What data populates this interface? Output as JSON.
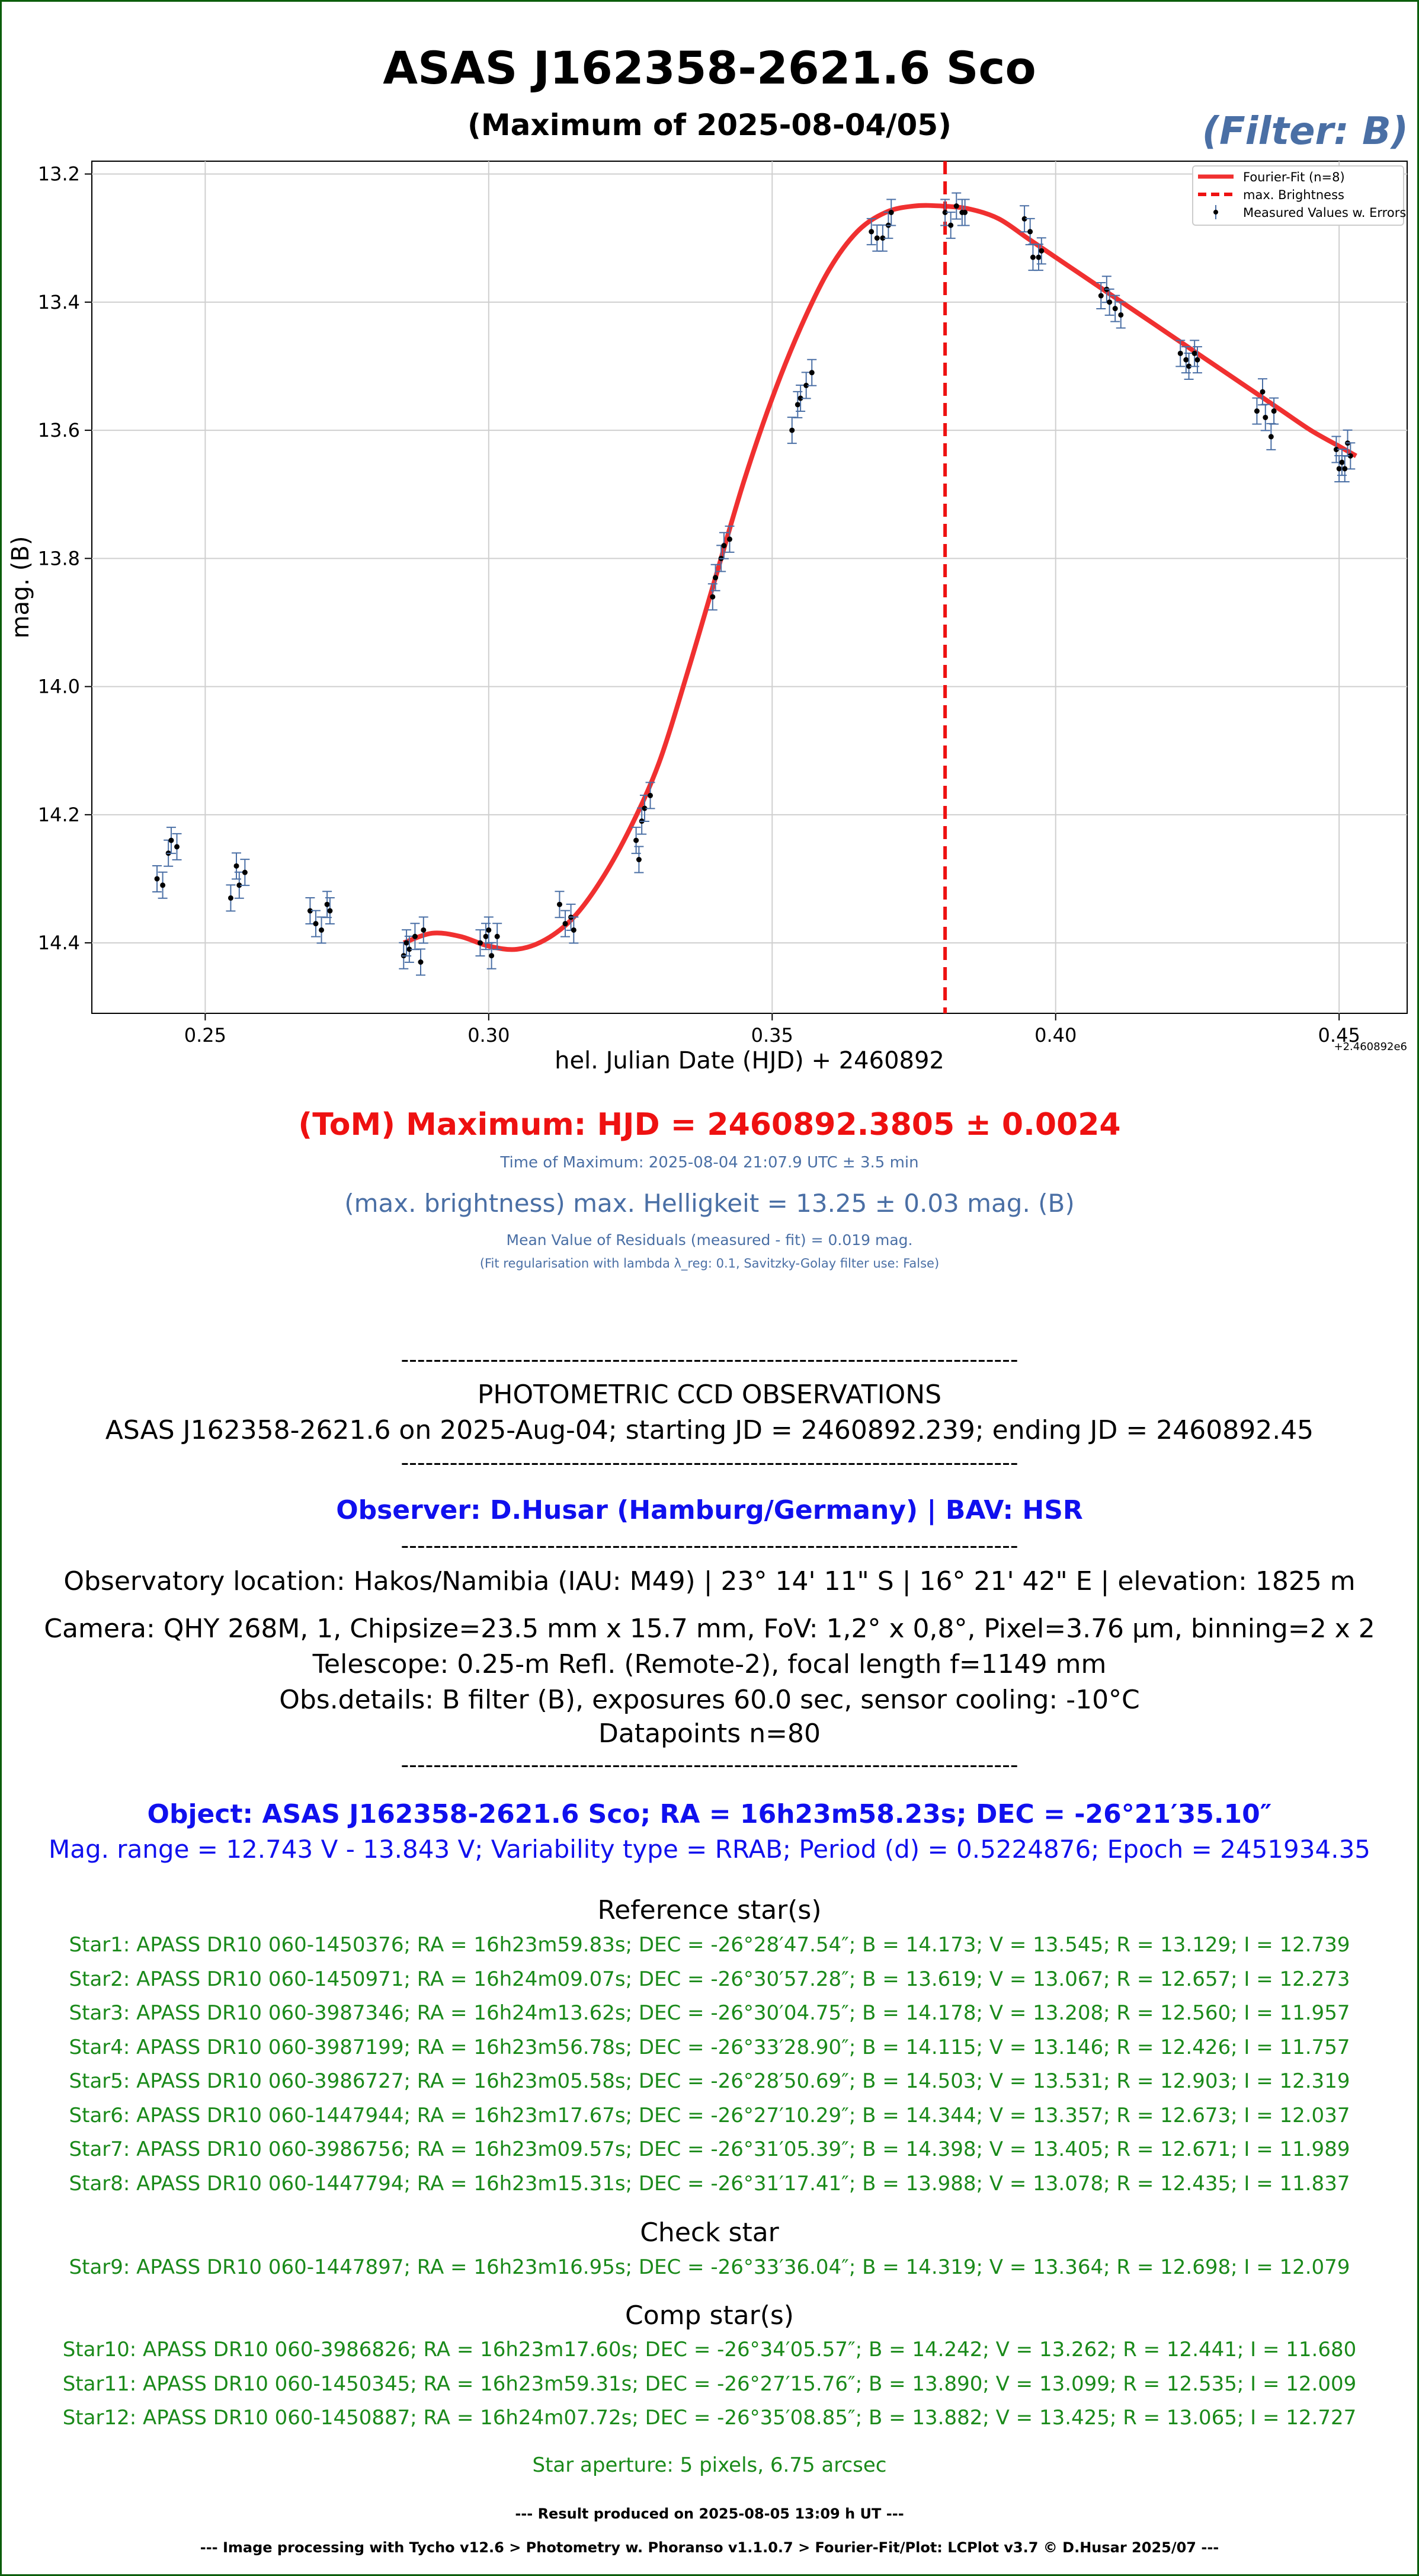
{
  "header": {
    "title": "ASAS J162358-2621.6 Sco",
    "subtitle": "(Maximum of 2025-08-04/05)",
    "filter": "(Filter: B)"
  },
  "chart_data": {
    "type": "scatter",
    "ylabel": "mag. (B)",
    "xlabel": "hel. Julian Date (HJD) + 2460892",
    "x_offset_label": "+2.460892e6",
    "xlim": [
      0.23,
      0.462
    ],
    "ylim": [
      14.51,
      13.18
    ],
    "y_inverted": true,
    "grid": true,
    "legend_position": "top-right",
    "x_ticks": [
      0.25,
      0.3,
      0.35,
      0.4,
      0.45
    ],
    "x_tick_labels": [
      "0.25",
      "0.30",
      "0.35",
      "0.40",
      "0.45"
    ],
    "y_ticks": [
      13.2,
      13.4,
      13.6,
      13.8,
      14.0,
      14.2,
      14.4
    ],
    "y_tick_labels": [
      "13.2",
      "13.4",
      "13.6",
      "13.8",
      "14.0",
      "14.2",
      "14.4"
    ],
    "legend": [
      "Fourier-Fit (n=8)",
      "max. Brightness",
      "Measured Values w. Errors"
    ],
    "colors": {
      "fit": "#f03030",
      "max_line": "#ee1111",
      "points": "#000000",
      "errorbars": "#4a6fa5"
    },
    "max_brightness_x": 0.3805,
    "fit_curve": {
      "name": "Fourier-Fit (n=8)",
      "x": [
        0.285,
        0.29,
        0.295,
        0.3,
        0.305,
        0.31,
        0.315,
        0.32,
        0.325,
        0.33,
        0.335,
        0.34,
        0.345,
        0.35,
        0.355,
        0.36,
        0.365,
        0.37,
        0.375,
        0.38,
        0.385,
        0.39,
        0.395,
        0.4,
        0.405,
        0.41,
        0.415,
        0.42,
        0.425,
        0.43,
        0.435,
        0.44,
        0.445,
        0.45,
        0.453
      ],
      "y": [
        14.4,
        14.385,
        14.39,
        14.405,
        14.41,
        14.395,
        14.36,
        14.3,
        14.22,
        14.12,
        13.98,
        13.83,
        13.68,
        13.55,
        13.44,
        13.35,
        13.29,
        13.26,
        13.25,
        13.25,
        13.255,
        13.27,
        13.3,
        13.33,
        13.36,
        13.39,
        13.42,
        13.45,
        13.48,
        13.51,
        13.54,
        13.57,
        13.6,
        13.625,
        13.64
      ]
    },
    "series": [
      {
        "name": "Measured Values w. Errors",
        "x": [
          0.2415,
          0.2425,
          0.2435,
          0.244,
          0.245,
          0.2545,
          0.2555,
          0.256,
          0.257,
          0.2685,
          0.2695,
          0.2705,
          0.2715,
          0.272,
          0.285,
          0.2855,
          0.286,
          0.287,
          0.288,
          0.2885,
          0.2985,
          0.2995,
          0.3,
          0.3005,
          0.3015,
          0.3125,
          0.3135,
          0.3145,
          0.315,
          0.326,
          0.3265,
          0.327,
          0.3275,
          0.3285,
          0.3395,
          0.34,
          0.341,
          0.3415,
          0.3425,
          0.3535,
          0.3545,
          0.355,
          0.356,
          0.357,
          0.3675,
          0.3685,
          0.3695,
          0.3705,
          0.371,
          0.3805,
          0.3815,
          0.3825,
          0.3835,
          0.384,
          0.3945,
          0.3955,
          0.396,
          0.397,
          0.3975,
          0.408,
          0.409,
          0.4095,
          0.4105,
          0.4115,
          0.422,
          0.423,
          0.4235,
          0.4245,
          0.425,
          0.4355,
          0.4365,
          0.437,
          0.438,
          0.4385,
          0.4495,
          0.45,
          0.4505,
          0.4515,
          0.452,
          0.451
        ],
        "y": [
          14.3,
          14.31,
          14.26,
          14.24,
          14.25,
          14.33,
          14.28,
          14.31,
          14.29,
          14.35,
          14.37,
          14.38,
          14.34,
          14.35,
          14.42,
          14.4,
          14.41,
          14.39,
          14.43,
          14.38,
          14.4,
          14.39,
          14.38,
          14.42,
          14.39,
          14.34,
          14.37,
          14.36,
          14.38,
          14.24,
          14.27,
          14.21,
          14.19,
          14.17,
          13.86,
          13.83,
          13.8,
          13.78,
          13.77,
          13.6,
          13.56,
          13.55,
          13.53,
          13.51,
          13.29,
          13.3,
          13.3,
          13.28,
          13.26,
          13.26,
          13.28,
          13.25,
          13.26,
          13.26,
          13.27,
          13.29,
          13.33,
          13.33,
          13.32,
          13.39,
          13.38,
          13.4,
          13.41,
          13.42,
          13.48,
          13.49,
          13.5,
          13.48,
          13.49,
          13.57,
          13.54,
          13.58,
          13.61,
          13.57,
          13.63,
          13.66,
          13.65,
          13.62,
          13.64,
          13.66
        ]
      }
    ]
  },
  "results": {
    "tom": "(ToM) Maximum: HJD = 2460892.3805 ± 0.0024",
    "tom_time": "Time of Maximum:   2025-08-04   21:07.9 UTC ± 3.5 min",
    "max_brightness": "(max. brightness) max. Helligkeit = 13.25 ± 0.03 mag. (B)",
    "residuals": "Mean Value of Residuals (measured - fit) = 0.019 mag.",
    "fit_note": "(Fit regularisation with lambda λ_reg: 0.1, Savitzky-Golay filter use: False)"
  },
  "observations": {
    "separator": "----------------------------------------------------------------------------",
    "heading": "PHOTOMETRIC CCD OBSERVATIONS",
    "run": "ASAS J162358-2621.6 on 2025-Aug-04; starting JD = 2460892.239; ending JD = 2460892.45",
    "observer": "Observer: D.Husar (Hamburg/Germany) | BAV: HSR",
    "location": "Observatory location: Hakos/Namibia (IAU: M49) | 23° 14' 11\" S | 16° 21' 42\" E | elevation: 1825 m",
    "camera": "Camera: QHY 268M, 1, Chipsize=23.5 mm x 15.7 mm, FoV: 1,2° x 0,8°, Pixel=3.76 µm, binning=2 x 2",
    "telescope": "Telescope: 0.25-m Refl. (Remote-2), focal length f=1149 mm",
    "details": "Obs.details: B filter (B), exposures 60.0 sec, sensor cooling: -10°C",
    "datapoints": "Datapoints n=80"
  },
  "object": {
    "line1": "Object: ASAS J162358-2621.6 Sco; RA = 16h23m58.23s; DEC = -26°21′35.10″",
    "line2": "Mag. range = 12.743 V - 13.843 V; Variability type = RRAB; Period (d) = 0.5224876; Epoch = 2451934.35"
  },
  "reference": {
    "heading": "Reference star(s)",
    "stars": [
      "Star1: APASS DR10 060-1450376; RA = 16h23m59.83s; DEC = -26°28′47.54″; B = 14.173; V = 13.545; R = 13.129; I = 12.739",
      "Star2: APASS DR10 060-1450971; RA = 16h24m09.07s; DEC = -26°30′57.28″; B = 13.619; V = 13.067; R = 12.657; I = 12.273",
      "Star3: APASS DR10 060-3987346; RA = 16h24m13.62s; DEC = -26°30′04.75″; B = 14.178; V = 13.208; R = 12.560; I = 11.957",
      "Star4: APASS DR10 060-3987199; RA = 16h23m56.78s; DEC = -26°33′28.90″; B = 14.115; V = 13.146; R = 12.426; I = 11.757",
      "Star5: APASS DR10 060-3986727; RA = 16h23m05.58s; DEC = -26°28′50.69″; B = 14.503; V = 13.531; R = 12.903; I = 12.319",
      "Star6: APASS DR10 060-1447944; RA = 16h23m17.67s; DEC = -26°27′10.29″; B = 14.344; V = 13.357; R = 12.673; I = 12.037",
      "Star7: APASS DR10 060-3986756; RA = 16h23m09.57s; DEC = -26°31′05.39″; B = 14.398; V = 13.405; R = 12.671; I = 11.989",
      "Star8: APASS DR10 060-1447794; RA = 16h23m15.31s; DEC = -26°31′17.41″; B = 13.988; V = 13.078; R = 12.435; I = 11.837"
    ]
  },
  "check": {
    "heading": "Check star",
    "stars": [
      "Star9: APASS DR10 060-1447897; RA = 16h23m16.95s; DEC = -26°33′36.04″; B = 14.319; V = 13.364; R = 12.698; I = 12.079"
    ]
  },
  "comp": {
    "heading": "Comp star(s)",
    "stars": [
      "Star10: APASS DR10 060-3986826; RA = 16h23m17.60s; DEC = -26°34′05.57″; B = 14.242; V = 13.262; R = 12.441; I = 11.680",
      "Star11: APASS DR10 060-1450345; RA = 16h23m59.31s; DEC = -26°27′15.76″; B = 13.890; V = 13.099; R = 12.535; I = 12.009",
      "Star12: APASS DR10 060-1450887; RA = 16h24m07.72s; DEC = -26°35′08.85″; B = 13.882; V = 13.425; R = 13.065; I = 12.727"
    ]
  },
  "aperture": "Star aperture: 5 pixels, 6.75 arcsec",
  "footer": {
    "result": "--- Result produced on 2025-08-05 13:09 h UT ---",
    "software": "--- Image processing with Tycho v12.6 > Photometry w. Phoranso v1.1.0.7 > Fourier-Fit/Plot: LCPlot v3.7 © D.Husar 2025/07 ---"
  }
}
